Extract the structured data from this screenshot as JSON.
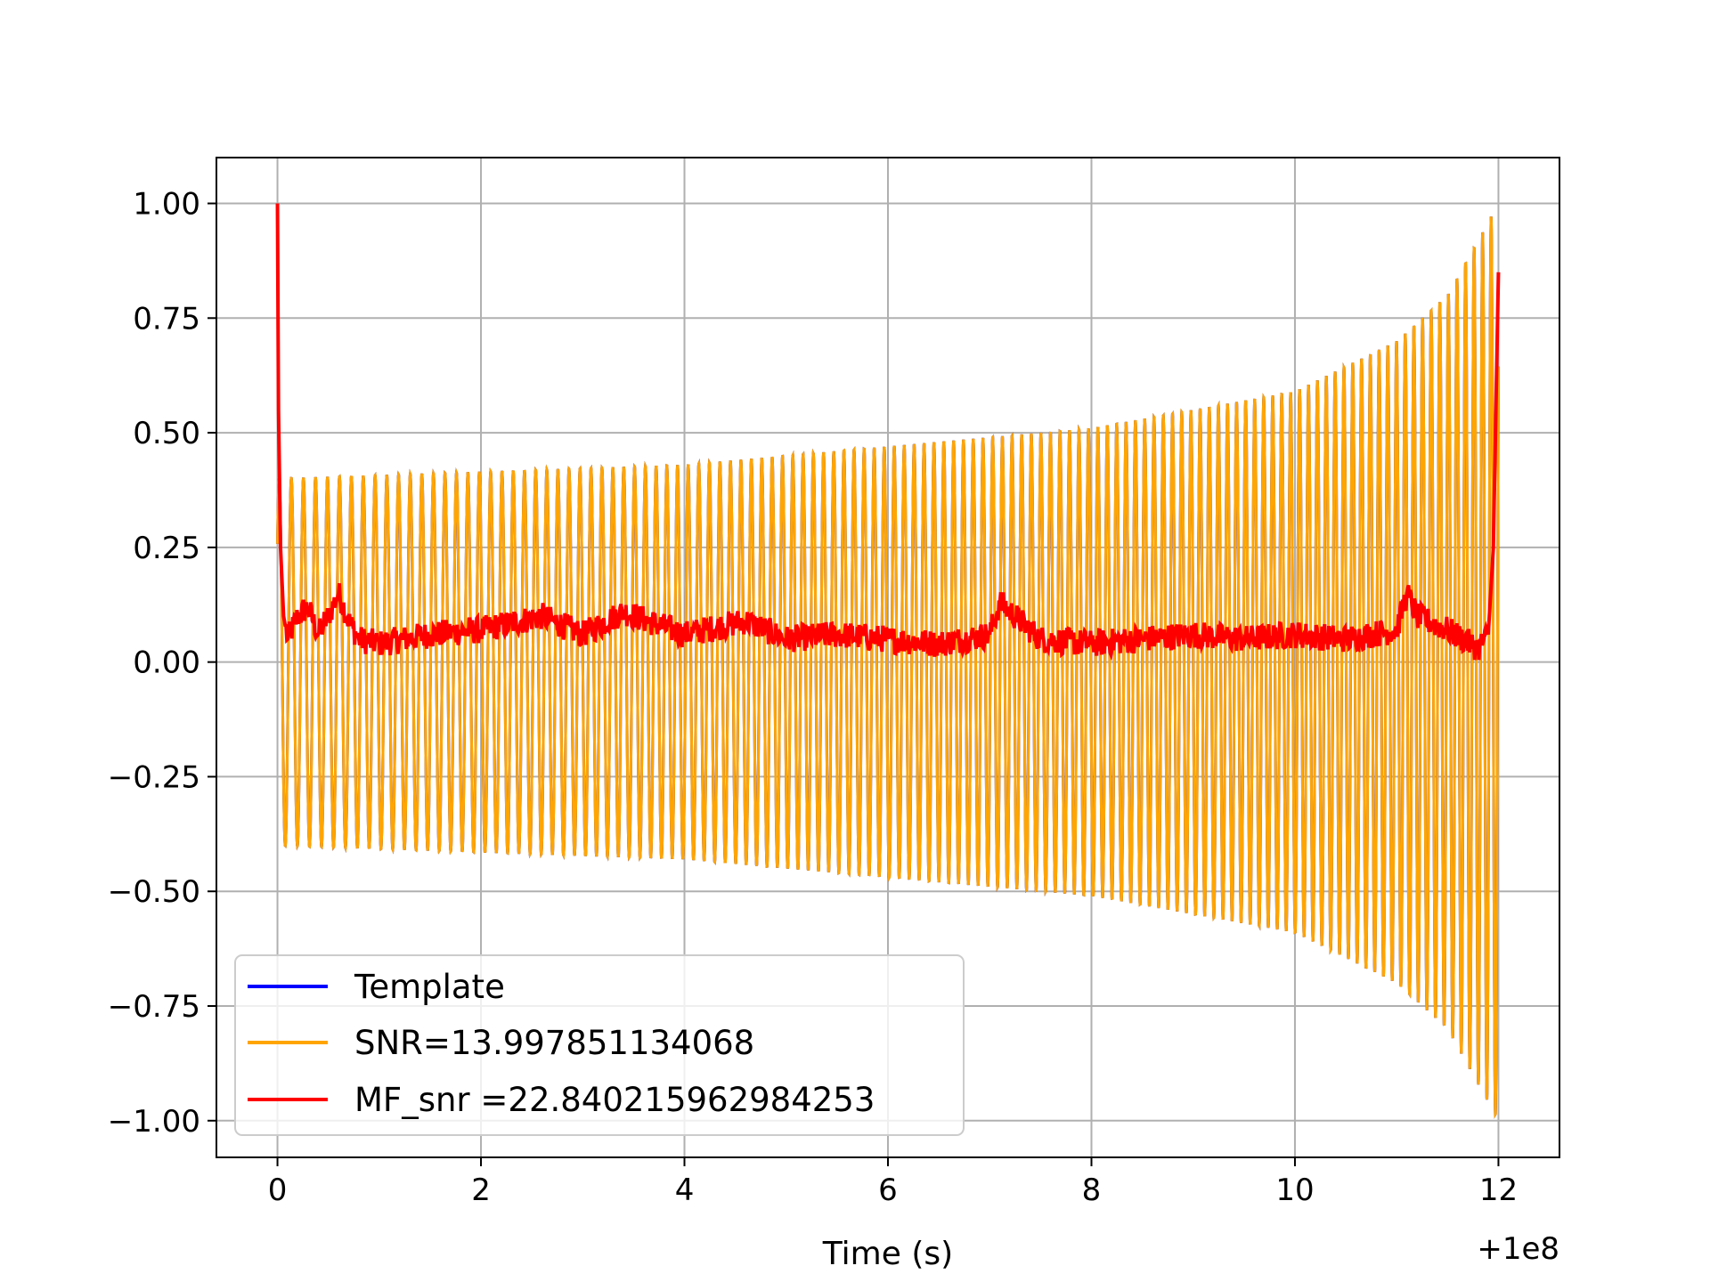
{
  "chart_data": {
    "type": "line",
    "title": "",
    "xlabel": "Time (s)",
    "ylabel": "",
    "x_offset_label": "+1e8",
    "xlim": [
      -0.6,
      12.6
    ],
    "ylim": [
      -1.08,
      1.1
    ],
    "grid": true,
    "x_ticks": [
      0,
      2,
      4,
      6,
      8,
      10,
      12
    ],
    "x_tick_labels": [
      "0",
      "2",
      "4",
      "6",
      "8",
      "10",
      "12"
    ],
    "y_ticks": [
      1.0,
      0.75,
      0.5,
      0.25,
      0.0,
      -0.25,
      -0.5,
      -0.75,
      -1.0
    ],
    "y_tick_labels": [
      "1.00",
      "0.75",
      "0.50",
      "0.25",
      "0.00",
      "−0.25",
      "−0.50",
      "−0.75",
      "−1.00"
    ],
    "legend_position": "lower-left",
    "series": [
      {
        "name": "Template",
        "color": "#0000ff",
        "description": "chirp waveform, hidden under SNR series",
        "t_start": 0.0,
        "t_end": 12.0,
        "envelope": [
          [
            0.0,
            0.4
          ],
          [
            4.0,
            0.43
          ],
          [
            8.0,
            0.51
          ],
          [
            10.0,
            0.59
          ],
          [
            11.0,
            0.7
          ],
          [
            11.5,
            0.8
          ],
          [
            12.0,
            1.0
          ]
        ],
        "cycles": 122
      },
      {
        "name": "SNR=13.997851134068",
        "color": "#ffa500",
        "description": "chirp waveform normalized to peak 1.0",
        "t_start": 0.0,
        "t_end": 12.0,
        "envelope": [
          [
            0.0,
            0.4
          ],
          [
            4.0,
            0.43
          ],
          [
            8.0,
            0.51
          ],
          [
            10.0,
            0.59
          ],
          [
            11.0,
            0.7
          ],
          [
            11.5,
            0.8
          ],
          [
            12.0,
            1.0
          ]
        ],
        "cycles": 122
      },
      {
        "name": "MF_snr =22.840215962984253",
        "color": "#ff0000",
        "description": "matched-filter SNR time series",
        "x": [
          0.0,
          0.01,
          0.03,
          0.06,
          0.1,
          0.2,
          0.3,
          0.4,
          0.5,
          0.6,
          0.7,
          0.8,
          1.0,
          1.5,
          2.0,
          2.6,
          3.0,
          3.4,
          4.0,
          4.6,
          5.0,
          5.5,
          6.0,
          6.5,
          7.0,
          7.1,
          7.5,
          8.0,
          8.5,
          9.0,
          9.5,
          10.0,
          10.5,
          11.0,
          11.1,
          11.2,
          11.5,
          11.8,
          11.9,
          11.95,
          12.0
        ],
        "y": [
          1.0,
          0.55,
          0.25,
          0.1,
          0.05,
          0.1,
          0.12,
          0.06,
          0.1,
          0.15,
          0.09,
          0.05,
          0.04,
          0.06,
          0.07,
          0.1,
          0.06,
          0.11,
          0.06,
          0.09,
          0.05,
          0.06,
          0.05,
          0.04,
          0.06,
          0.13,
          0.05,
          0.04,
          0.05,
          0.06,
          0.05,
          0.06,
          0.05,
          0.07,
          0.15,
          0.1,
          0.07,
          0.03,
          0.06,
          0.25,
          0.85
        ]
      }
    ]
  }
}
